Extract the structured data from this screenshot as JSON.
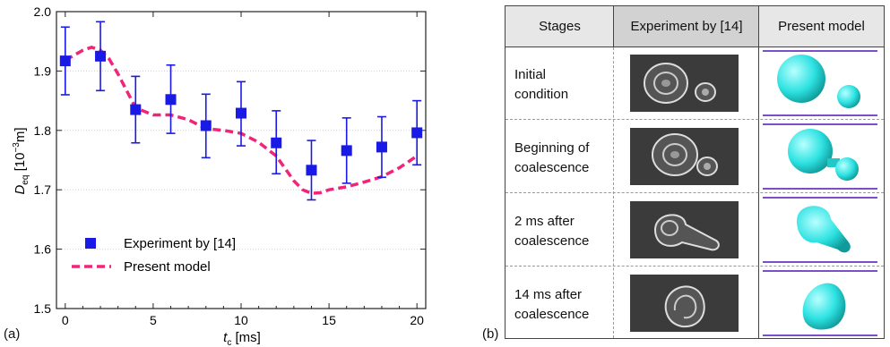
{
  "panel_a_label": "(a)",
  "panel_b_label": "(b)",
  "chart_data": {
    "type": "scatter",
    "ylabel_main": "D",
    "ylabel_sub": "eq",
    "ylabel_unit": "[10",
    "ylabel_exp": "−3",
    "ylabel_tail": "m]",
    "xlabel_main": "t",
    "xlabel_sub": "c",
    "xlabel_unit": "[ms]",
    "xlim": [
      -0.5,
      20.5
    ],
    "ylim": [
      1.5,
      2.0
    ],
    "xticks": [
      0,
      5,
      10,
      15,
      20
    ],
    "yticks": [
      1.5,
      1.6,
      1.7,
      1.8,
      1.9,
      2.0
    ],
    "ytick_labels": [
      "1.5",
      "1.6",
      "1.7",
      "1.8",
      "1.9",
      "2.0"
    ],
    "grid": "horizontal dotted",
    "legend_position": "bottom-left",
    "colors": {
      "experiment": "#1a1ae6",
      "model": "#f0257a"
    },
    "series": [
      {
        "name": "Experiment by [14]",
        "style": "square markers with error bars",
        "x": [
          0,
          2,
          4,
          6,
          8,
          10,
          12,
          14,
          16,
          18,
          20
        ],
        "y": [
          1.917,
          1.925,
          1.835,
          1.852,
          1.808,
          1.829,
          1.779,
          1.733,
          1.766,
          1.772,
          1.796
        ],
        "y_low": [
          1.86,
          1.867,
          1.779,
          1.795,
          1.754,
          1.774,
          1.727,
          1.683,
          1.711,
          1.721,
          1.742
        ],
        "y_high": [
          1.974,
          1.983,
          1.891,
          1.91,
          1.861,
          1.882,
          1.833,
          1.783,
          1.821,
          1.823,
          1.85
        ]
      },
      {
        "name": "Present model",
        "style": "dashed line",
        "x": [
          0,
          1,
          1.5,
          2,
          2.5,
          3,
          4,
          5,
          6,
          7,
          8,
          9,
          10,
          11,
          12,
          13,
          13.5,
          14,
          14.5,
          15,
          16,
          17,
          18,
          19,
          20
        ],
        "y": [
          1.918,
          1.935,
          1.94,
          1.935,
          1.92,
          1.895,
          1.838,
          1.826,
          1.826,
          1.818,
          1.803,
          1.8,
          1.795,
          1.78,
          1.757,
          1.715,
          1.7,
          1.694,
          1.695,
          1.7,
          1.705,
          1.713,
          1.722,
          1.737,
          1.757
        ]
      }
    ]
  },
  "table": {
    "headers": [
      "Stages",
      "Experiment by [14]",
      "Present model"
    ],
    "rows": [
      {
        "stage_lines": [
          "Initial",
          "condition"
        ]
      },
      {
        "stage_lines": [
          "Beginning of",
          "coalescence"
        ]
      },
      {
        "stage_lines": [
          "2 ms after",
          "coalescence"
        ]
      },
      {
        "stage_lines": [
          "14 ms after",
          "coalescence"
        ]
      }
    ],
    "model_color": "#29e3e3",
    "plane_color": "#7b4fc6"
  }
}
